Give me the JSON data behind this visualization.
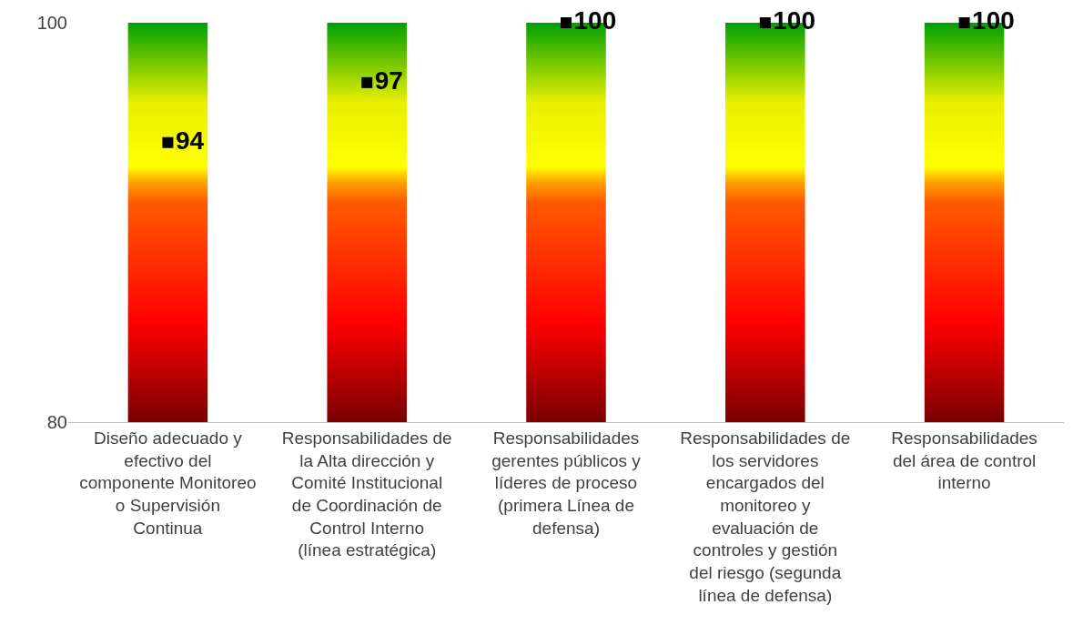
{
  "chart_data": {
    "type": "bar",
    "categories": [
      "Diseño adecuado y efectivo del componente Monitoreo o Supervisión Continua",
      "Responsabilidades de la Alta dirección y Comité Institucional de Coordinación de Control Interno (línea estratégica)",
      "Responsabilidades gerentes públicos y líderes de proceso (primera Línea de defensa)",
      "Responsabilidades de los servidores encargados del monitoreo y evaluación de controles y gestión del riesgo (segunda línea de defensa)",
      "Responsabilidades del área de control interno"
    ],
    "series": [
      {
        "values": [
          100,
          100,
          100,
          100,
          100
        ]
      },
      {
        "type": "scatter",
        "color": "#000000",
        "values": [
          94,
          97,
          100,
          100,
          100
        ],
        "data_labels": true,
        "marker": "square"
      }
    ],
    "ylim": [
      80,
      100
    ],
    "yticks": [
      80,
      100
    ]
  }
}
